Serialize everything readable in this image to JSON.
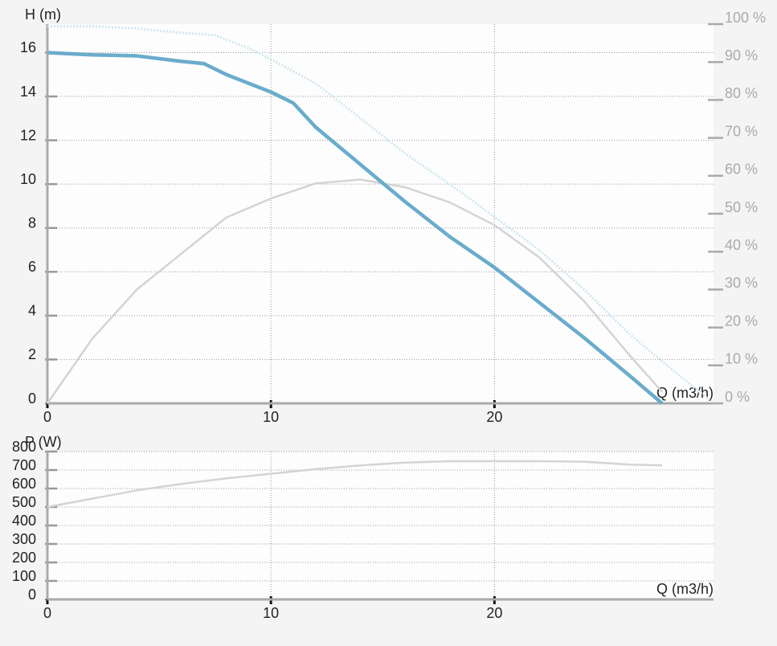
{
  "chart_data": [
    {
      "type": "line",
      "y_label": "H (m)",
      "x_label": "Q (m3/h)",
      "xlim": [
        0,
        29.8
      ],
      "xticks": [
        0,
        10,
        20
      ],
      "ylim": [
        0,
        17.3
      ],
      "yticks": [
        0,
        2,
        4,
        6,
        8,
        10,
        12,
        14,
        16
      ],
      "y2lim": [
        0,
        100
      ],
      "y2ticks": [
        {
          "value": 0,
          "label": "0 %"
        },
        {
          "value": 10,
          "label": "10 %"
        },
        {
          "value": 20,
          "label": "20 %"
        },
        {
          "value": 30,
          "label": "30 %"
        },
        {
          "value": 40,
          "label": "40 %"
        },
        {
          "value": 50,
          "label": "50 %"
        },
        {
          "value": 60,
          "label": "60 %"
        },
        {
          "value": 70,
          "label": "70 %"
        },
        {
          "value": 80,
          "label": "80 %"
        },
        {
          "value": 90,
          "label": "90 %"
        },
        {
          "value": 100,
          "label": "100 %"
        }
      ],
      "grid": true,
      "series": [
        {
          "color": "#cfe6f1",
          "line_style": "dotted",
          "x": [
            0,
            2,
            4,
            6,
            7.5,
            9,
            10,
            12,
            14,
            16,
            18,
            20,
            22,
            24,
            26,
            28,
            29.8
          ],
          "values": [
            17.2,
            17.2,
            17.1,
            16.9,
            16.8,
            16.2,
            15.7,
            14.6,
            13.0,
            11.4,
            10.0,
            8.5,
            7.0,
            5.2,
            3.2,
            1.5,
            0
          ]
        },
        {
          "color": "#d4d4d4",
          "line_style": "solid",
          "axis": "y2",
          "x": [
            0,
            2,
            4,
            6,
            8,
            10,
            12,
            14,
            16,
            18,
            20,
            22,
            24,
            26,
            27.5
          ],
          "values": [
            0,
            17,
            30,
            39.5,
            49,
            54,
            58,
            59,
            57,
            53,
            47,
            38.5,
            27,
            13,
            3
          ]
        },
        {
          "color": "#6aaccc",
          "line_style": "thick",
          "x": [
            0,
            2,
            4,
            6,
            7,
            8,
            10,
            11,
            12,
            14,
            16,
            18,
            20,
            22,
            24,
            26,
            27.5
          ],
          "values": [
            16,
            15.9,
            15.85,
            15.6,
            15.5,
            15,
            14.2,
            13.7,
            12.6,
            10.9,
            9.2,
            7.6,
            6.2,
            4.6,
            3.0,
            1.3,
            0
          ]
        }
      ]
    },
    {
      "type": "line",
      "y_label": "P (W)",
      "x_label": "Q (m3/h)",
      "xlim": [
        0,
        29.8
      ],
      "xticks": [
        0,
        10,
        20
      ],
      "ylim": [
        0,
        800
      ],
      "yticks": [
        0,
        100,
        200,
        300,
        400,
        500,
        600,
        700,
        800
      ],
      "grid": true,
      "series": [
        {
          "color": "#d4d4d4",
          "line_style": "solid",
          "x": [
            0,
            2,
            4,
            6,
            8,
            10,
            12,
            14,
            16,
            18,
            20,
            22,
            24,
            26,
            27.5
          ],
          "values": [
            500,
            545,
            590,
            625,
            655,
            680,
            705,
            725,
            740,
            748,
            748,
            748,
            745,
            730,
            725
          ]
        }
      ]
    }
  ]
}
